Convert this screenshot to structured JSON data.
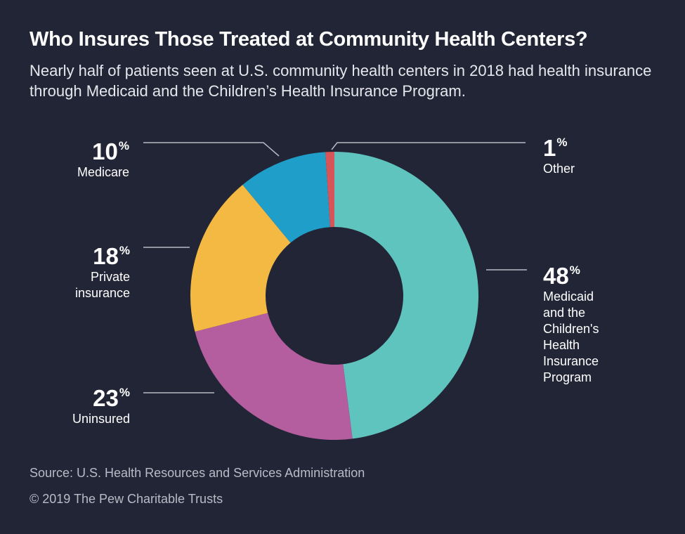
{
  "title": "Who Insures Those Treated at Community Health Centers?",
  "subtitle": "Nearly half of patients seen at U.S. community health centers in 2018 had health insurance through Medicaid and the Children’s Health Insurance Program.",
  "source": "Source: U.S. Health Resources and Services Administration",
  "copyright": "© 2019 The Pew Charitable Trusts",
  "chart_data": {
    "type": "pie",
    "donut": true,
    "unit": "%",
    "slices": [
      {
        "label": "Medicaid and the Children's Health Insurance Program",
        "value": 48,
        "color": "#5fc4be"
      },
      {
        "label": "Uninsured",
        "value": 23,
        "color": "#b55e9f"
      },
      {
        "label": "Private insurance",
        "value": 18,
        "color": "#f4b942"
      },
      {
        "label": "Medicare",
        "value": 10,
        "color": "#1f9ec9"
      },
      {
        "label": "Other",
        "value": 1,
        "color": "#d75558"
      }
    ]
  },
  "labels": {
    "medicaid": {
      "pct": "48",
      "text": [
        "Medicaid",
        "and the",
        "Children's",
        "Health",
        "Insurance",
        "Program"
      ]
    },
    "uninsured": {
      "pct": "23",
      "text": [
        "Uninsured"
      ]
    },
    "private": {
      "pct": "18",
      "text": [
        "Private",
        "insurance"
      ]
    },
    "medicare": {
      "pct": "10",
      "text": [
        "Medicare"
      ]
    },
    "other": {
      "pct": "1",
      "text": [
        "Other"
      ]
    },
    "percent_sign": "%"
  }
}
